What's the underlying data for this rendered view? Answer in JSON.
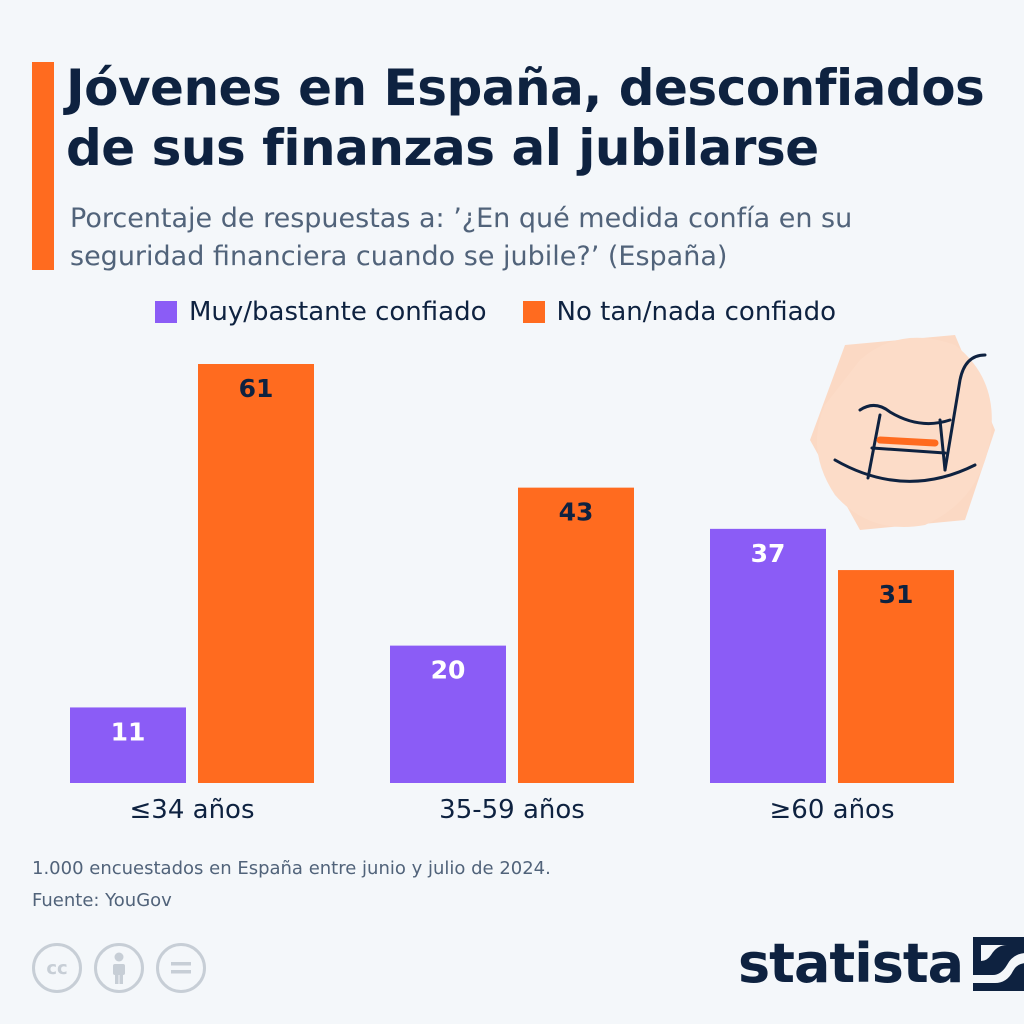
{
  "title": "Jóvenes en España, desconfiados de sus finanzas al jubilarse",
  "subtitle": "Porcentaje de respuestas a: ’¿En qué medida confía en su seguridad financiera cuando se jubile?’ (España)",
  "colors": {
    "accent": "#ff6b1f",
    "purple": "#8b5cf6",
    "orange": "#ff6b1f",
    "text": "#0e2240",
    "muted": "#51637a",
    "background": "#f4f7fa"
  },
  "chart_data": {
    "type": "bar",
    "categories": [
      "≤34 años",
      "35-59 años",
      "≥60 años"
    ],
    "series": [
      {
        "name": "Muy/bastante confiado",
        "values": [
          11,
          20,
          37
        ],
        "color": "#8b5cf6"
      },
      {
        "name": "No tan/nada confiado",
        "values": [
          61,
          43,
          31
        ],
        "color": "#ff6b1f"
      }
    ],
    "title": "Jóvenes en España, desconfiados de sus finanzas al jubilarse",
    "xlabel": "",
    "ylabel": "",
    "ylim": [
      0,
      61
    ],
    "grid": false,
    "legend_position": "top"
  },
  "footnote": {
    "note": "1.000 encuestados en España entre junio y julio de 2024.",
    "source": "Fuente: YouGov"
  },
  "license_icons": [
    "cc-icon",
    "attribution-icon",
    "no-derivatives-icon"
  ],
  "cc_label": "cc",
  "brand": {
    "name": "statista"
  },
  "illustration": "rocking-chair-icon"
}
